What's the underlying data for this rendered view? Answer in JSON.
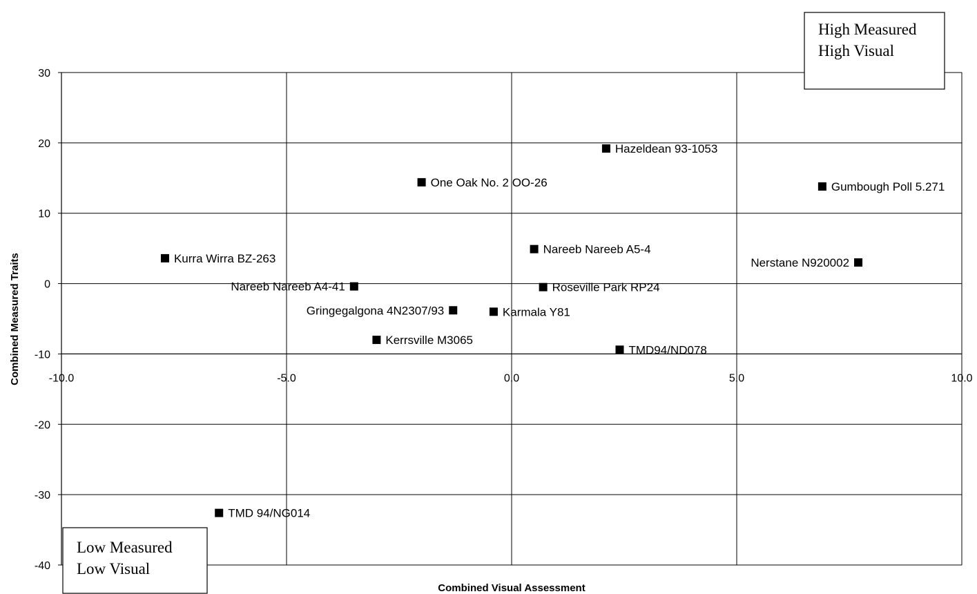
{
  "chart_data": {
    "type": "scatter",
    "title": "",
    "xlabel": "Combined Visual Assessment",
    "ylabel": "Combined Measured Traits",
    "xlim": [
      -10,
      10
    ],
    "ylim": [
      -40,
      30
    ],
    "x_ticks": [
      -10,
      -5,
      0,
      5,
      10
    ],
    "x_tick_labels": [
      "-10.0",
      "-5.0",
      "0.0",
      "5.0",
      "10.0"
    ],
    "y_ticks": [
      -40,
      -30,
      -20,
      -10,
      0,
      10,
      20,
      30
    ],
    "y_tick_labels": [
      "-40",
      "-30",
      "-20",
      "-10",
      "0",
      "10",
      "20",
      "30"
    ],
    "grid": true,
    "marker": "square",
    "points": [
      {
        "label": "Hazeldean 93-1053",
        "x": 2.1,
        "y": 19.2,
        "label_side": "right"
      },
      {
        "label": "One Oak No. 2 OO-26",
        "x": -2.0,
        "y": 14.4,
        "label_side": "right"
      },
      {
        "label": "Gumbough Poll 5.271",
        "x": 6.9,
        "y": 13.8,
        "label_side": "right"
      },
      {
        "label": "Nareeb Nareeb A5-4",
        "x": 0.5,
        "y": 4.9,
        "label_side": "right"
      },
      {
        "label": "Kurra Wirra BZ-263",
        "x": -7.7,
        "y": 3.6,
        "label_side": "right"
      },
      {
        "label": "Nerstane N920002",
        "x": 7.7,
        "y": 3.0,
        "label_side": "left"
      },
      {
        "label": "Nareeb Nareeb A4-41",
        "x": -3.5,
        "y": -0.4,
        "label_side": "left"
      },
      {
        "label": "Roseville Park RP24",
        "x": 0.7,
        "y": -0.5,
        "label_side": "right"
      },
      {
        "label": "Gringegalgona 4N2307/93",
        "x": -1.3,
        "y": -3.8,
        "label_side": "left"
      },
      {
        "label": "Karmala Y81",
        "x": -0.4,
        "y": -4.0,
        "label_side": "right"
      },
      {
        "label": "Kerrsville M3065",
        "x": -3.0,
        "y": -8.0,
        "label_side": "right"
      },
      {
        "label": "TMD94/ND078",
        "x": 2.4,
        "y": -9.4,
        "label_side": "right"
      },
      {
        "label": "TMD 94/NG014",
        "x": -6.5,
        "y": -32.6,
        "label_side": "right"
      }
    ],
    "annotations": [
      {
        "id": "high",
        "lines": [
          "High Measured",
          "High Visual"
        ],
        "position": "top-right"
      },
      {
        "id": "low",
        "lines": [
          "Low Measured",
          "Low Visual"
        ],
        "position": "bottom-left"
      }
    ]
  }
}
